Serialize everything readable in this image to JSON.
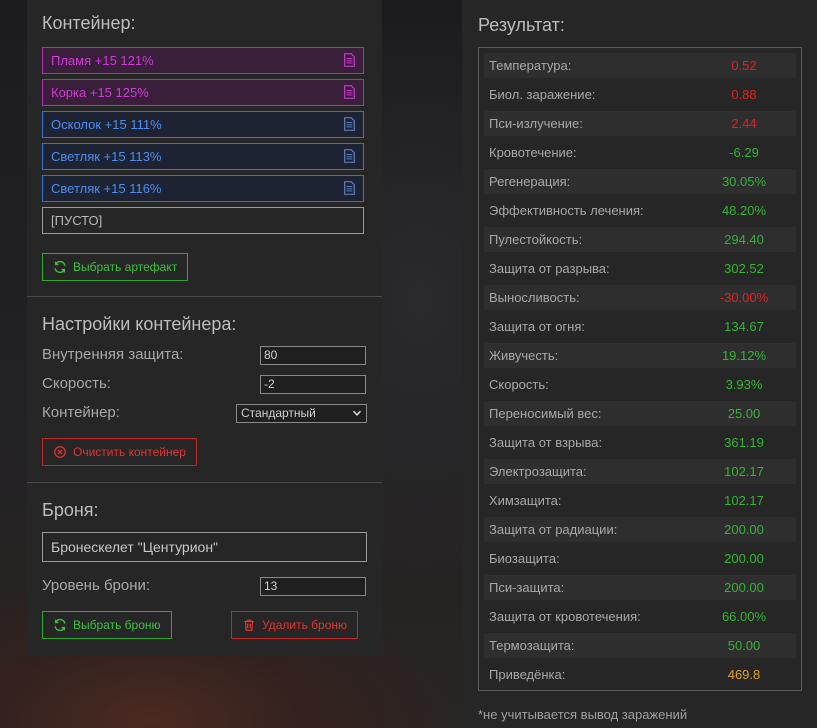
{
  "container": {
    "title": "Контейнер:",
    "slots": [
      {
        "label": "Пламя +15 121%",
        "color": "magenta"
      },
      {
        "label": "Корка +15 125%",
        "color": "magenta"
      },
      {
        "label": "Осколок +15 111%",
        "color": "blue"
      },
      {
        "label": "Светляк +15 113%",
        "color": "blue"
      },
      {
        "label": "Светляк +15 116%",
        "color": "blue"
      },
      {
        "label": "[ПУСТО]",
        "color": "empty"
      }
    ],
    "select_artifact_label": "Выбрать артефакт"
  },
  "settings": {
    "title": "Настройки контейнера:",
    "internal_protection_label": "Внутренняя защита:",
    "internal_protection_value": "80",
    "speed_label": "Скорость:",
    "speed_value": "-2",
    "container_label": "Контейнер:",
    "container_selected": "Стандартный",
    "clear_label": "Очистить контейнер"
  },
  "armor": {
    "title": "Броня:",
    "name": "Бронескелет \"Центурион\"",
    "level_label": "Уровень брони:",
    "level_value": "13",
    "select_label": "Выбрать броню",
    "delete_label": "Удалить броню"
  },
  "results": {
    "title": "Результат:",
    "rows": [
      {
        "name": "Температура:",
        "value": "0.52",
        "color": "red"
      },
      {
        "name": "Биол. заражение:",
        "value": "0.88",
        "color": "red"
      },
      {
        "name": "Пси-излучение:",
        "value": "2.44",
        "color": "red"
      },
      {
        "name": "Кровотечение:",
        "value": "-6.29",
        "color": "green"
      },
      {
        "name": "Регенерация:",
        "value": "30.05%",
        "color": "green"
      },
      {
        "name": "Эффективность лечения:",
        "value": "48.20%",
        "color": "green"
      },
      {
        "name": "Пулестойкость:",
        "value": "294.40",
        "color": "green"
      },
      {
        "name": "Защита от разрыва:",
        "value": "302.52",
        "color": "green"
      },
      {
        "name": "Выносливость:",
        "value": "-30.00%",
        "color": "red"
      },
      {
        "name": "Защита от огня:",
        "value": "134.67",
        "color": "green"
      },
      {
        "name": "Живучесть:",
        "value": "19.12%",
        "color": "green"
      },
      {
        "name": "Скорость:",
        "value": "3.93%",
        "color": "green"
      },
      {
        "name": "Переносимый вес:",
        "value": "25.00",
        "color": "green"
      },
      {
        "name": "Защита от взрыва:",
        "value": "361.19",
        "color": "green"
      },
      {
        "name": "Электрозащита:",
        "value": "102.17",
        "color": "green"
      },
      {
        "name": "Химзащита:",
        "value": "102.17",
        "color": "green"
      },
      {
        "name": "Защита от радиации:",
        "value": "200.00",
        "color": "green"
      },
      {
        "name": "Биозащита:",
        "value": "200.00",
        "color": "green"
      },
      {
        "name": "Пси-защита:",
        "value": "200.00",
        "color": "green"
      },
      {
        "name": "Защита от кровотечения:",
        "value": "66.00%",
        "color": "green"
      },
      {
        "name": "Термозащита:",
        "value": "50.00",
        "color": "green"
      },
      {
        "name": "Приведёнка:",
        "value": "469.8",
        "color": "gold"
      }
    ],
    "footnote": "*не учитывается вывод заражений"
  }
}
